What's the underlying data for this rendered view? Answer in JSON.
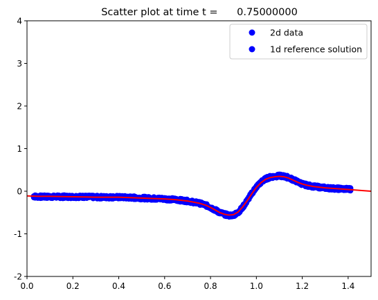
{
  "chart_data": {
    "type": "scatter",
    "title": "Scatter plot at time t =      0.75000000",
    "xlabel": "",
    "ylabel": "",
    "xlim": [
      0,
      1.5
    ],
    "ylim": [
      -2,
      4
    ],
    "xticks": [
      "0.0",
      "0.2",
      "0.4",
      "0.6",
      "0.8",
      "1.0",
      "1.2",
      "1.4"
    ],
    "yticks": [
      "-2",
      "-1",
      "0",
      "1",
      "2",
      "3",
      "4"
    ],
    "xtick_values": [
      0,
      0.2,
      0.4,
      0.6,
      0.8,
      1.0,
      1.2,
      1.4
    ],
    "ytick_values": [
      -2,
      -1,
      0,
      1,
      2,
      3,
      4
    ],
    "grid": false,
    "legend_position": "top-right",
    "series": [
      {
        "name": "2d data",
        "kind": "scatter",
        "color": "#0000ff",
        "x_range": [
          0.03,
          1.41
        ],
        "spread": 0.07,
        "points": [
          [
            0.03,
            -0.12
          ],
          [
            0.05,
            -0.13
          ],
          [
            0.07,
            -0.13
          ],
          [
            0.1,
            -0.13
          ],
          [
            0.15,
            -0.13
          ],
          [
            0.2,
            -0.13
          ],
          [
            0.25,
            -0.13
          ],
          [
            0.3,
            -0.14
          ],
          [
            0.35,
            -0.14
          ],
          [
            0.4,
            -0.14
          ],
          [
            0.45,
            -0.15
          ],
          [
            0.5,
            -0.16
          ],
          [
            0.55,
            -0.17
          ],
          [
            0.6,
            -0.18
          ],
          [
            0.65,
            -0.2
          ],
          [
            0.7,
            -0.23
          ],
          [
            0.75,
            -0.28
          ],
          [
            0.78,
            -0.33
          ],
          [
            0.8,
            -0.38
          ],
          [
            0.82,
            -0.44
          ],
          [
            0.84,
            -0.5
          ],
          [
            0.86,
            -0.54
          ],
          [
            0.88,
            -0.57
          ],
          [
            0.9,
            -0.56
          ],
          [
            0.92,
            -0.5
          ],
          [
            0.94,
            -0.38
          ],
          [
            0.96,
            -0.22
          ],
          [
            0.98,
            -0.05
          ],
          [
            1.0,
            0.1
          ],
          [
            1.02,
            0.21
          ],
          [
            1.04,
            0.29
          ],
          [
            1.06,
            0.33
          ],
          [
            1.08,
            0.35
          ],
          [
            1.1,
            0.36
          ],
          [
            1.12,
            0.35
          ],
          [
            1.14,
            0.32
          ],
          [
            1.16,
            0.27
          ],
          [
            1.18,
            0.22
          ],
          [
            1.2,
            0.17
          ],
          [
            1.22,
            0.14
          ],
          [
            1.25,
            0.11
          ],
          [
            1.3,
            0.08
          ],
          [
            1.35,
            0.06
          ],
          [
            1.4,
            0.05
          ],
          [
            1.41,
            0.05
          ]
        ]
      },
      {
        "name": "1d reference solution",
        "kind": "line",
        "color": "#ff0000",
        "points": [
          [
            0.0,
            -0.11
          ],
          [
            0.05,
            -0.12
          ],
          [
            0.1,
            -0.12
          ],
          [
            0.2,
            -0.13
          ],
          [
            0.3,
            -0.14
          ],
          [
            0.4,
            -0.14
          ],
          [
            0.5,
            -0.16
          ],
          [
            0.55,
            -0.17
          ],
          [
            0.6,
            -0.18
          ],
          [
            0.65,
            -0.2
          ],
          [
            0.7,
            -0.23
          ],
          [
            0.75,
            -0.28
          ],
          [
            0.78,
            -0.33
          ],
          [
            0.8,
            -0.38
          ],
          [
            0.82,
            -0.44
          ],
          [
            0.84,
            -0.5
          ],
          [
            0.86,
            -0.54
          ],
          [
            0.88,
            -0.56
          ],
          [
            0.9,
            -0.55
          ],
          [
            0.92,
            -0.49
          ],
          [
            0.94,
            -0.37
          ],
          [
            0.96,
            -0.22
          ],
          [
            0.98,
            -0.06
          ],
          [
            1.0,
            0.09
          ],
          [
            1.02,
            0.2
          ],
          [
            1.04,
            0.28
          ],
          [
            1.06,
            0.32
          ],
          [
            1.08,
            0.34
          ],
          [
            1.1,
            0.35
          ],
          [
            1.12,
            0.34
          ],
          [
            1.14,
            0.31
          ],
          [
            1.16,
            0.26
          ],
          [
            1.18,
            0.21
          ],
          [
            1.2,
            0.17
          ],
          [
            1.22,
            0.14
          ],
          [
            1.25,
            0.11
          ],
          [
            1.3,
            0.08
          ],
          [
            1.35,
            0.06
          ],
          [
            1.4,
            0.04
          ],
          [
            1.45,
            0.02
          ],
          [
            1.5,
            0.0
          ]
        ]
      }
    ]
  }
}
